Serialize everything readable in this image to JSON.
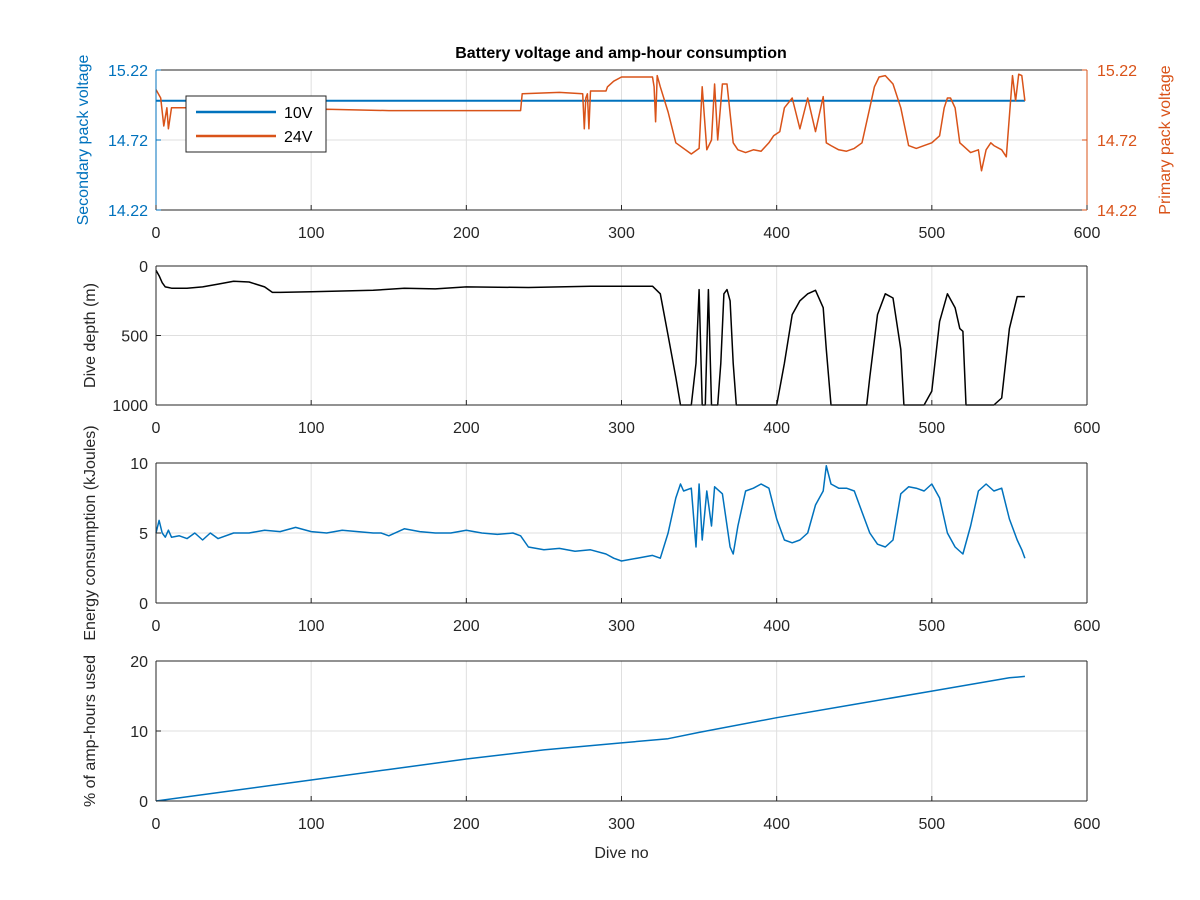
{
  "figure": {
    "title": "Battery voltage and amp-hour consumption",
    "colors": {
      "blue": "#0072BD",
      "orange": "#D95319",
      "black": "#000000",
      "grid": "#dfdfdf",
      "axis": "#262626"
    }
  },
  "chart_data": [
    {
      "type": "line",
      "title": "Battery voltage and amp-hour consumption",
      "xlabel": "",
      "ylabel": "Secondary pack voltage",
      "ylabel_right": "Primary pack voltage",
      "xlim": [
        0,
        600
      ],
      "ylim": [
        14.22,
        15.22
      ],
      "ylim_right": [
        14.22,
        15.22
      ],
      "xticks": [
        0,
        100,
        200,
        300,
        400,
        500,
        600
      ],
      "yticks": [
        14.22,
        14.72,
        15.22
      ],
      "grid": true,
      "legend": {
        "placement": "top-left",
        "entries": [
          "10V",
          "24V"
        ]
      },
      "series": [
        {
          "name": "10V",
          "axis": "left",
          "color": "#0072BD",
          "x": [
            0,
            560
          ],
          "y": [
            15.0,
            15.0
          ]
        },
        {
          "name": "24V",
          "axis": "right",
          "color": "#D95319",
          "x": [
            0,
            3,
            5,
            7,
            8,
            10,
            30,
            60,
            80,
            110,
            150,
            190,
            220,
            235,
            236,
            260,
            275,
            276,
            277,
            278,
            279,
            280,
            290,
            291,
            295,
            300,
            320,
            321,
            322,
            323,
            325,
            330,
            335,
            345,
            350,
            352,
            355,
            358,
            360,
            362,
            365,
            368,
            372,
            375,
            380,
            385,
            390,
            395,
            398,
            402,
            405,
            410,
            415,
            420,
            425,
            430,
            432,
            435,
            440,
            445,
            450,
            455,
            460,
            463,
            466,
            470,
            475,
            480,
            485,
            490,
            495,
            500,
            505,
            508,
            510,
            512,
            515,
            518,
            520,
            525,
            530,
            532,
            535,
            538,
            540,
            545,
            548,
            552,
            554,
            556,
            558,
            560
          ],
          "y": [
            15.08,
            15.02,
            14.82,
            14.95,
            14.8,
            14.95,
            14.95,
            14.96,
            14.93,
            14.94,
            14.93,
            14.93,
            14.93,
            14.93,
            15.05,
            15.06,
            15.05,
            14.8,
            15.02,
            15.05,
            14.8,
            15.07,
            15.07,
            15.1,
            15.14,
            15.17,
            15.17,
            15.1,
            14.85,
            15.18,
            15.1,
            14.92,
            14.7,
            14.62,
            14.66,
            15.1,
            14.65,
            14.72,
            15.12,
            14.72,
            15.12,
            15.12,
            14.7,
            14.65,
            14.63,
            14.65,
            14.64,
            14.7,
            14.75,
            14.78,
            14.95,
            15.02,
            14.8,
            15.02,
            14.78,
            15.03,
            14.7,
            14.68,
            14.65,
            14.64,
            14.66,
            14.7,
            14.95,
            15.1,
            15.17,
            15.18,
            15.12,
            14.95,
            14.68,
            14.66,
            14.68,
            14.7,
            14.75,
            14.95,
            15.02,
            15.02,
            14.95,
            14.7,
            14.68,
            14.63,
            14.65,
            14.5,
            14.65,
            14.7,
            14.68,
            14.65,
            14.6,
            15.18,
            15.0,
            15.19,
            15.18,
            15.0
          ]
        }
      ]
    },
    {
      "type": "line",
      "title": "",
      "xlabel": "",
      "ylabel": "Dive depth (m)",
      "xlim": [
        0,
        600
      ],
      "ylim": [
        1000,
        0
      ],
      "y_reversed": true,
      "xticks": [
        0,
        100,
        200,
        300,
        400,
        500,
        600
      ],
      "yticks": [
        0,
        500,
        1000
      ],
      "grid": true,
      "series": [
        {
          "color": "#000000",
          "x": [
            0,
            2,
            4,
            6,
            8,
            10,
            20,
            30,
            40,
            50,
            60,
            70,
            75,
            80,
            100,
            120,
            140,
            160,
            180,
            200,
            240,
            280,
            300,
            320,
            325,
            330,
            335,
            338,
            345,
            348,
            350,
            352,
            354,
            356,
            358,
            360,
            362,
            364,
            366,
            368,
            370,
            372,
            374,
            376,
            378,
            380,
            385,
            390,
            395,
            400,
            405,
            410,
            415,
            420,
            425,
            430,
            432,
            435,
            440,
            450,
            458,
            460,
            465,
            470,
            475,
            480,
            482,
            485,
            490,
            495,
            500,
            505,
            510,
            515,
            518,
            520,
            522,
            525,
            530,
            535,
            540,
            545,
            550,
            555,
            560
          ],
          "y": [
            30,
            70,
            120,
            150,
            155,
            160,
            160,
            150,
            130,
            110,
            115,
            150,
            190,
            190,
            185,
            180,
            175,
            160,
            165,
            150,
            155,
            145,
            145,
            145,
            200,
            500,
            800,
            1000,
            1000,
            700,
            170,
            1000,
            1000,
            170,
            1000,
            1000,
            1000,
            700,
            200,
            170,
            250,
            700,
            1000,
            1000,
            1000,
            1000,
            1000,
            1000,
            1000,
            1000,
            700,
            350,
            250,
            200,
            175,
            300,
            600,
            1000,
            1000,
            1000,
            1000,
            800,
            350,
            200,
            230,
            600,
            1000,
            1000,
            1000,
            1000,
            900,
            400,
            200,
            300,
            450,
            470,
            1000,
            1000,
            1000,
            1000,
            1000,
            950,
            450,
            220,
            220
          ]
        }
      ]
    },
    {
      "type": "line",
      "title": "",
      "xlabel": "",
      "ylabel": "Energy consumption (kJoules)",
      "xlim": [
        0,
        600
      ],
      "ylim": [
        0,
        10
      ],
      "xticks": [
        0,
        100,
        200,
        300,
        400,
        500,
        600
      ],
      "yticks": [
        0,
        5,
        10
      ],
      "grid": true,
      "series": [
        {
          "color": "#0072BD",
          "x": [
            0,
            2,
            4,
            6,
            8,
            10,
            15,
            20,
            25,
            30,
            35,
            40,
            50,
            60,
            70,
            80,
            90,
            100,
            110,
            120,
            130,
            140,
            145,
            150,
            160,
            170,
            180,
            190,
            200,
            210,
            220,
            230,
            235,
            240,
            250,
            260,
            270,
            280,
            290,
            295,
            300,
            310,
            320,
            325,
            330,
            335,
            338,
            340,
            345,
            348,
            350,
            352,
            355,
            358,
            360,
            365,
            370,
            372,
            375,
            380,
            385,
            390,
            395,
            400,
            405,
            410,
            415,
            420,
            425,
            430,
            432,
            435,
            440,
            445,
            450,
            455,
            460,
            465,
            470,
            475,
            480,
            485,
            490,
            495,
            500,
            505,
            510,
            515,
            520,
            525,
            530,
            535,
            540,
            545,
            550,
            555,
            558,
            560
          ],
          "y": [
            5.0,
            5.9,
            5.0,
            4.7,
            5.2,
            4.7,
            4.8,
            4.6,
            5.0,
            4.5,
            5.0,
            4.6,
            5.0,
            5.0,
            5.2,
            5.1,
            5.4,
            5.1,
            5.0,
            5.2,
            5.1,
            5.0,
            5.0,
            4.8,
            5.3,
            5.1,
            5.0,
            5.0,
            5.2,
            5.0,
            4.9,
            5.0,
            4.8,
            4.0,
            3.8,
            3.9,
            3.7,
            3.8,
            3.5,
            3.2,
            3.0,
            3.2,
            3.4,
            3.2,
            5.0,
            7.5,
            8.5,
            8.0,
            8.2,
            4.0,
            8.5,
            4.5,
            8.0,
            5.5,
            8.3,
            7.8,
            4.0,
            3.5,
            5.5,
            8.0,
            8.2,
            8.5,
            8.2,
            6.0,
            4.5,
            4.3,
            4.5,
            5.0,
            7.0,
            8.0,
            9.8,
            8.5,
            8.2,
            8.2,
            8.0,
            6.5,
            5.0,
            4.2,
            4.0,
            4.5,
            7.8,
            8.3,
            8.2,
            8.0,
            8.5,
            7.5,
            5.0,
            4.0,
            3.5,
            5.5,
            8.0,
            8.5,
            8.0,
            8.2,
            6.0,
            4.5,
            3.8,
            3.2
          ]
        }
      ]
    },
    {
      "type": "line",
      "title": "",
      "xlabel": "Dive no",
      "ylabel": "% of amp-hours used",
      "xlim": [
        0,
        600
      ],
      "ylim": [
        0,
        20
      ],
      "xticks": [
        0,
        100,
        200,
        300,
        400,
        500,
        600
      ],
      "yticks": [
        0,
        10,
        20
      ],
      "grid": true,
      "series": [
        {
          "color": "#0072BD",
          "x": [
            0,
            50,
            100,
            150,
            200,
            250,
            300,
            330,
            350,
            400,
            450,
            500,
            550,
            560
          ],
          "y": [
            0,
            1.5,
            3.0,
            4.5,
            6.0,
            7.3,
            8.3,
            8.9,
            9.8,
            11.9,
            13.8,
            15.7,
            17.6,
            17.8
          ]
        }
      ]
    }
  ]
}
